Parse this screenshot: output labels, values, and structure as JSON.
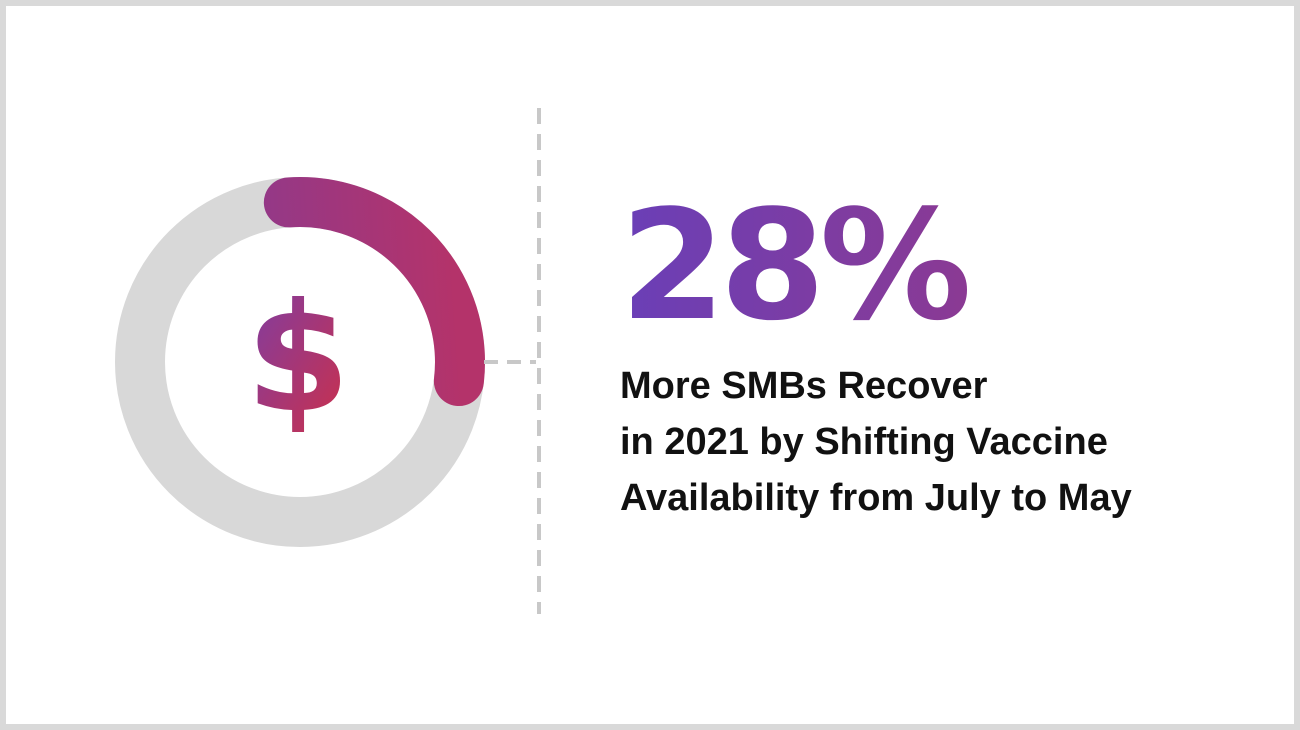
{
  "stat": {
    "value": "28%",
    "caption_lines": [
      "More SMBs Recover",
      "in 2021 by Shifting Vaccine",
      "Availability from July to May"
    ]
  },
  "gauge": {
    "progress_fraction": 0.28,
    "icon": "dollar-sign-icon",
    "symbol": "$"
  },
  "colors": {
    "gradient_start": "#6a3fb7",
    "gradient_end": "#c8304f",
    "track": "#d8d8d8",
    "bracket": "#c8c8c8",
    "frame_border": "#d9d9d9",
    "text": "#111111"
  }
}
